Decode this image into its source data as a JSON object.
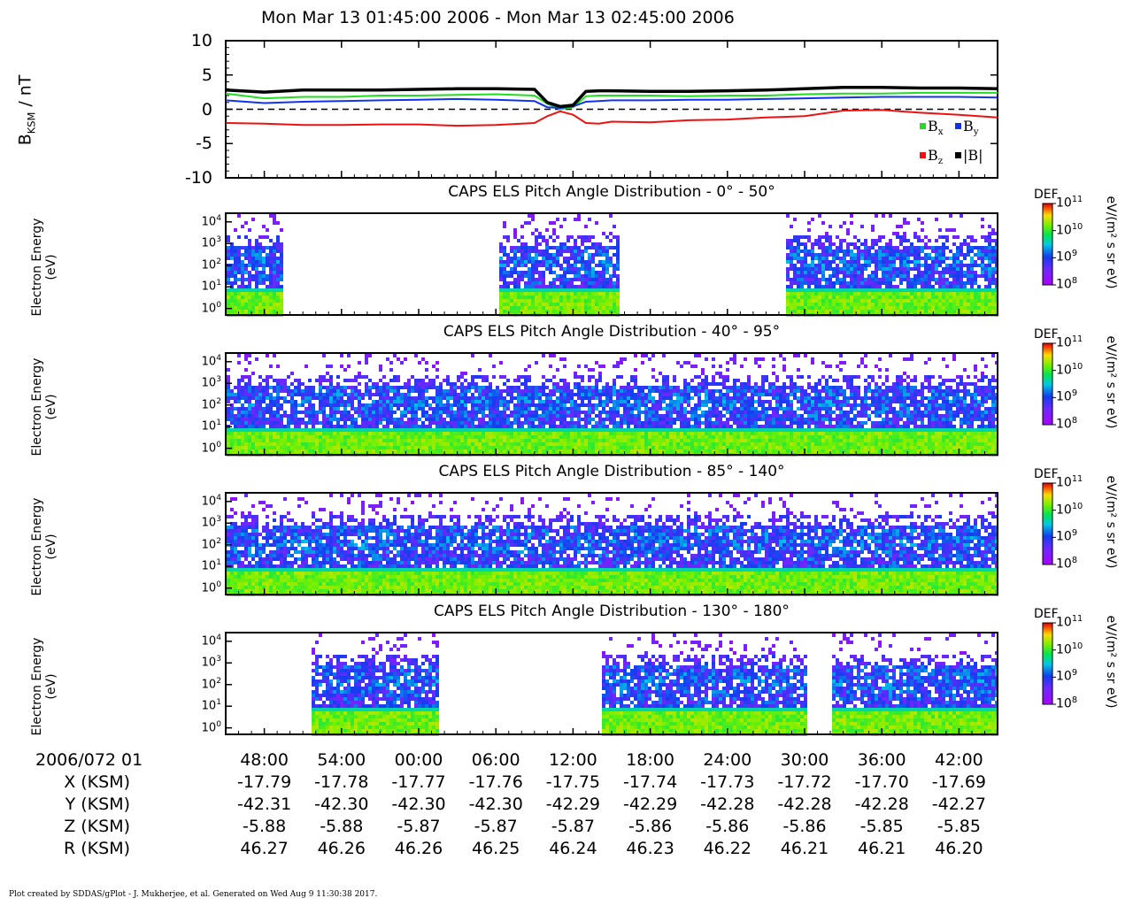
{
  "title": "Mon Mar 13 01:45:00 2006 - Mon Mar 13 02:45:00 2006",
  "footer": "Plot created by SDDAS/gPlot - J. Mukherjee, et al.  Generated on Wed Aug 9 11:30:38 2017.",
  "chart_data": [
    {
      "type": "line",
      "ylabel": "B_KSM / nT",
      "ylabel_main": "B",
      "ylabel_sub": "KSM",
      "ylabel_unit": " / nT",
      "ylim": [
        -10,
        10
      ],
      "yticks": [
        "10",
        "5",
        "0",
        "-5",
        "-10"
      ],
      "xlim_minutes": [
        105,
        165
      ],
      "x_minutes": [
        105,
        108,
        111,
        114,
        117,
        120,
        123,
        126,
        129,
        130,
        131,
        132,
        133,
        134,
        135,
        138,
        141,
        144,
        147,
        150,
        153,
        156,
        159,
        162,
        165
      ],
      "zero_line": "dashed",
      "legend": "bottom-right",
      "series": [
        {
          "name": "Bx",
          "label_main": "B",
          "label_sub": "x",
          "color": "#22dd22",
          "values": [
            2.3,
            1.6,
            1.8,
            1.8,
            2.0,
            2.0,
            2.1,
            2.2,
            2.0,
            0.8,
            0.0,
            0.3,
            1.9,
            2.0,
            2.0,
            2.0,
            1.9,
            2.0,
            2.0,
            2.2,
            2.3,
            2.3,
            2.4,
            2.4,
            2.4
          ]
        },
        {
          "name": "By",
          "label_main": "B",
          "label_sub": "y",
          "color": "#1133ee",
          "values": [
            1.3,
            0.9,
            1.1,
            1.2,
            1.3,
            1.4,
            1.5,
            1.4,
            1.2,
            0.3,
            0.2,
            0.4,
            1.1,
            1.2,
            1.3,
            1.3,
            1.4,
            1.4,
            1.5,
            1.6,
            1.7,
            1.8,
            1.8,
            1.8,
            1.7
          ]
        },
        {
          "name": "Bz",
          "label_main": "B",
          "label_sub": "z",
          "color": "#ee1111",
          "values": [
            -2.0,
            -2.1,
            -2.3,
            -2.3,
            -2.2,
            -2.2,
            -2.4,
            -2.3,
            -2.0,
            -1.0,
            -0.3,
            -0.8,
            -2.0,
            -2.1,
            -1.8,
            -1.9,
            -1.6,
            -1.5,
            -1.2,
            -1.0,
            -0.2,
            -0.1,
            -0.5,
            -0.8,
            -1.2
          ]
        },
        {
          "name": "|B|",
          "label_main": "|B|",
          "label_sub": "",
          "color": "#000000",
          "values": [
            2.8,
            2.5,
            2.8,
            2.8,
            2.8,
            2.9,
            3.0,
            3.0,
            2.9,
            1.0,
            0.4,
            0.6,
            2.6,
            2.7,
            2.7,
            2.6,
            2.6,
            2.7,
            2.8,
            3.0,
            3.2,
            3.2,
            3.1,
            3.1,
            3.0
          ]
        }
      ]
    },
    {
      "type": "heatmap",
      "title": "CAPS ELS Pitch Angle Distribution - 0° - 50°",
      "ylabel_lines": [
        "Electron Energy",
        "(eV)"
      ],
      "yticks_exp": [
        "4",
        "3",
        "2",
        "1",
        "0"
      ],
      "y_scale": "log",
      "colorbar_label": "DEF",
      "colorbar_unit": "eV/(m² s sr eV)",
      "colorbar_ticks_exp": [
        "11",
        "10",
        "9",
        "8"
      ],
      "coverage_minutes": [
        [
          105,
          109.3
        ],
        [
          126,
          135.5
        ],
        [
          148.5,
          165
        ]
      ]
    },
    {
      "type": "heatmap",
      "title": "CAPS ELS Pitch Angle Distribution - 40° - 95°",
      "ylabel_lines": [
        "Electron Energy",
        "(eV)"
      ],
      "yticks_exp": [
        "4",
        "3",
        "2",
        "1",
        "0"
      ],
      "y_scale": "log",
      "colorbar_label": "DEF",
      "colorbar_unit": "eV/(m² s sr eV)",
      "colorbar_ticks_exp": [
        "11",
        "10",
        "9",
        "8"
      ],
      "coverage_minutes": [
        [
          105,
          165
        ]
      ]
    },
    {
      "type": "heatmap",
      "title": "CAPS ELS Pitch Angle Distribution - 85° - 140°",
      "ylabel_lines": [
        "Electron Energy",
        "(eV)"
      ],
      "yticks_exp": [
        "4",
        "3",
        "2",
        "1",
        "0"
      ],
      "y_scale": "log",
      "colorbar_label": "DEF",
      "colorbar_unit": "eV/(m² s sr eV)",
      "colorbar_ticks_exp": [
        "11",
        "10",
        "9",
        "8"
      ],
      "coverage_minutes": [
        [
          105,
          165
        ]
      ]
    },
    {
      "type": "heatmap",
      "title": "CAPS ELS Pitch Angle Distribution - 130° - 180°",
      "ylabel_lines": [
        "Electron Energy",
        "(eV)"
      ],
      "yticks_exp": [
        "4",
        "3",
        "2",
        "1",
        "0"
      ],
      "y_scale": "log",
      "colorbar_label": "DEF",
      "colorbar_unit": "eV/(m² s sr eV)",
      "colorbar_ticks_exp": [
        "11",
        "10",
        "9",
        "8"
      ],
      "coverage_minutes": [
        [
          111.5,
          121.5
        ],
        [
          134,
          138.3
        ],
        [
          138.3,
          150.2
        ],
        [
          152,
          165
        ]
      ]
    }
  ],
  "ephemeris": {
    "date_label": "2006/072 01",
    "tick_minutes": [
      108,
      114,
      120,
      126,
      132,
      138,
      144,
      150,
      156,
      162
    ],
    "time_labels": [
      "48:00",
      "54:00",
      "00:00",
      "06:00",
      "12:00",
      "18:00",
      "24:00",
      "30:00",
      "36:00",
      "42:00"
    ],
    "rows": [
      {
        "label": "X (KSM)",
        "values": [
          "-17.79",
          "-17.78",
          "-17.77",
          "-17.76",
          "-17.75",
          "-17.74",
          "-17.73",
          "-17.72",
          "-17.70",
          "-17.69"
        ]
      },
      {
        "label": "Y (KSM)",
        "values": [
          "-42.31",
          "-42.30",
          "-42.30",
          "-42.30",
          "-42.29",
          "-42.29",
          "-42.28",
          "-42.28",
          "-42.28",
          "-42.27"
        ]
      },
      {
        "label": "Z (KSM)",
        "values": [
          "-5.88",
          "-5.88",
          "-5.87",
          "-5.87",
          "-5.87",
          "-5.86",
          "-5.86",
          "-5.86",
          "-5.85",
          "-5.85"
        ]
      },
      {
        "label": "R (KSM)",
        "values": [
          "46.27",
          "46.26",
          "46.26",
          "46.25",
          "46.24",
          "46.23",
          "46.22",
          "46.21",
          "46.21",
          "46.20"
        ]
      }
    ]
  }
}
